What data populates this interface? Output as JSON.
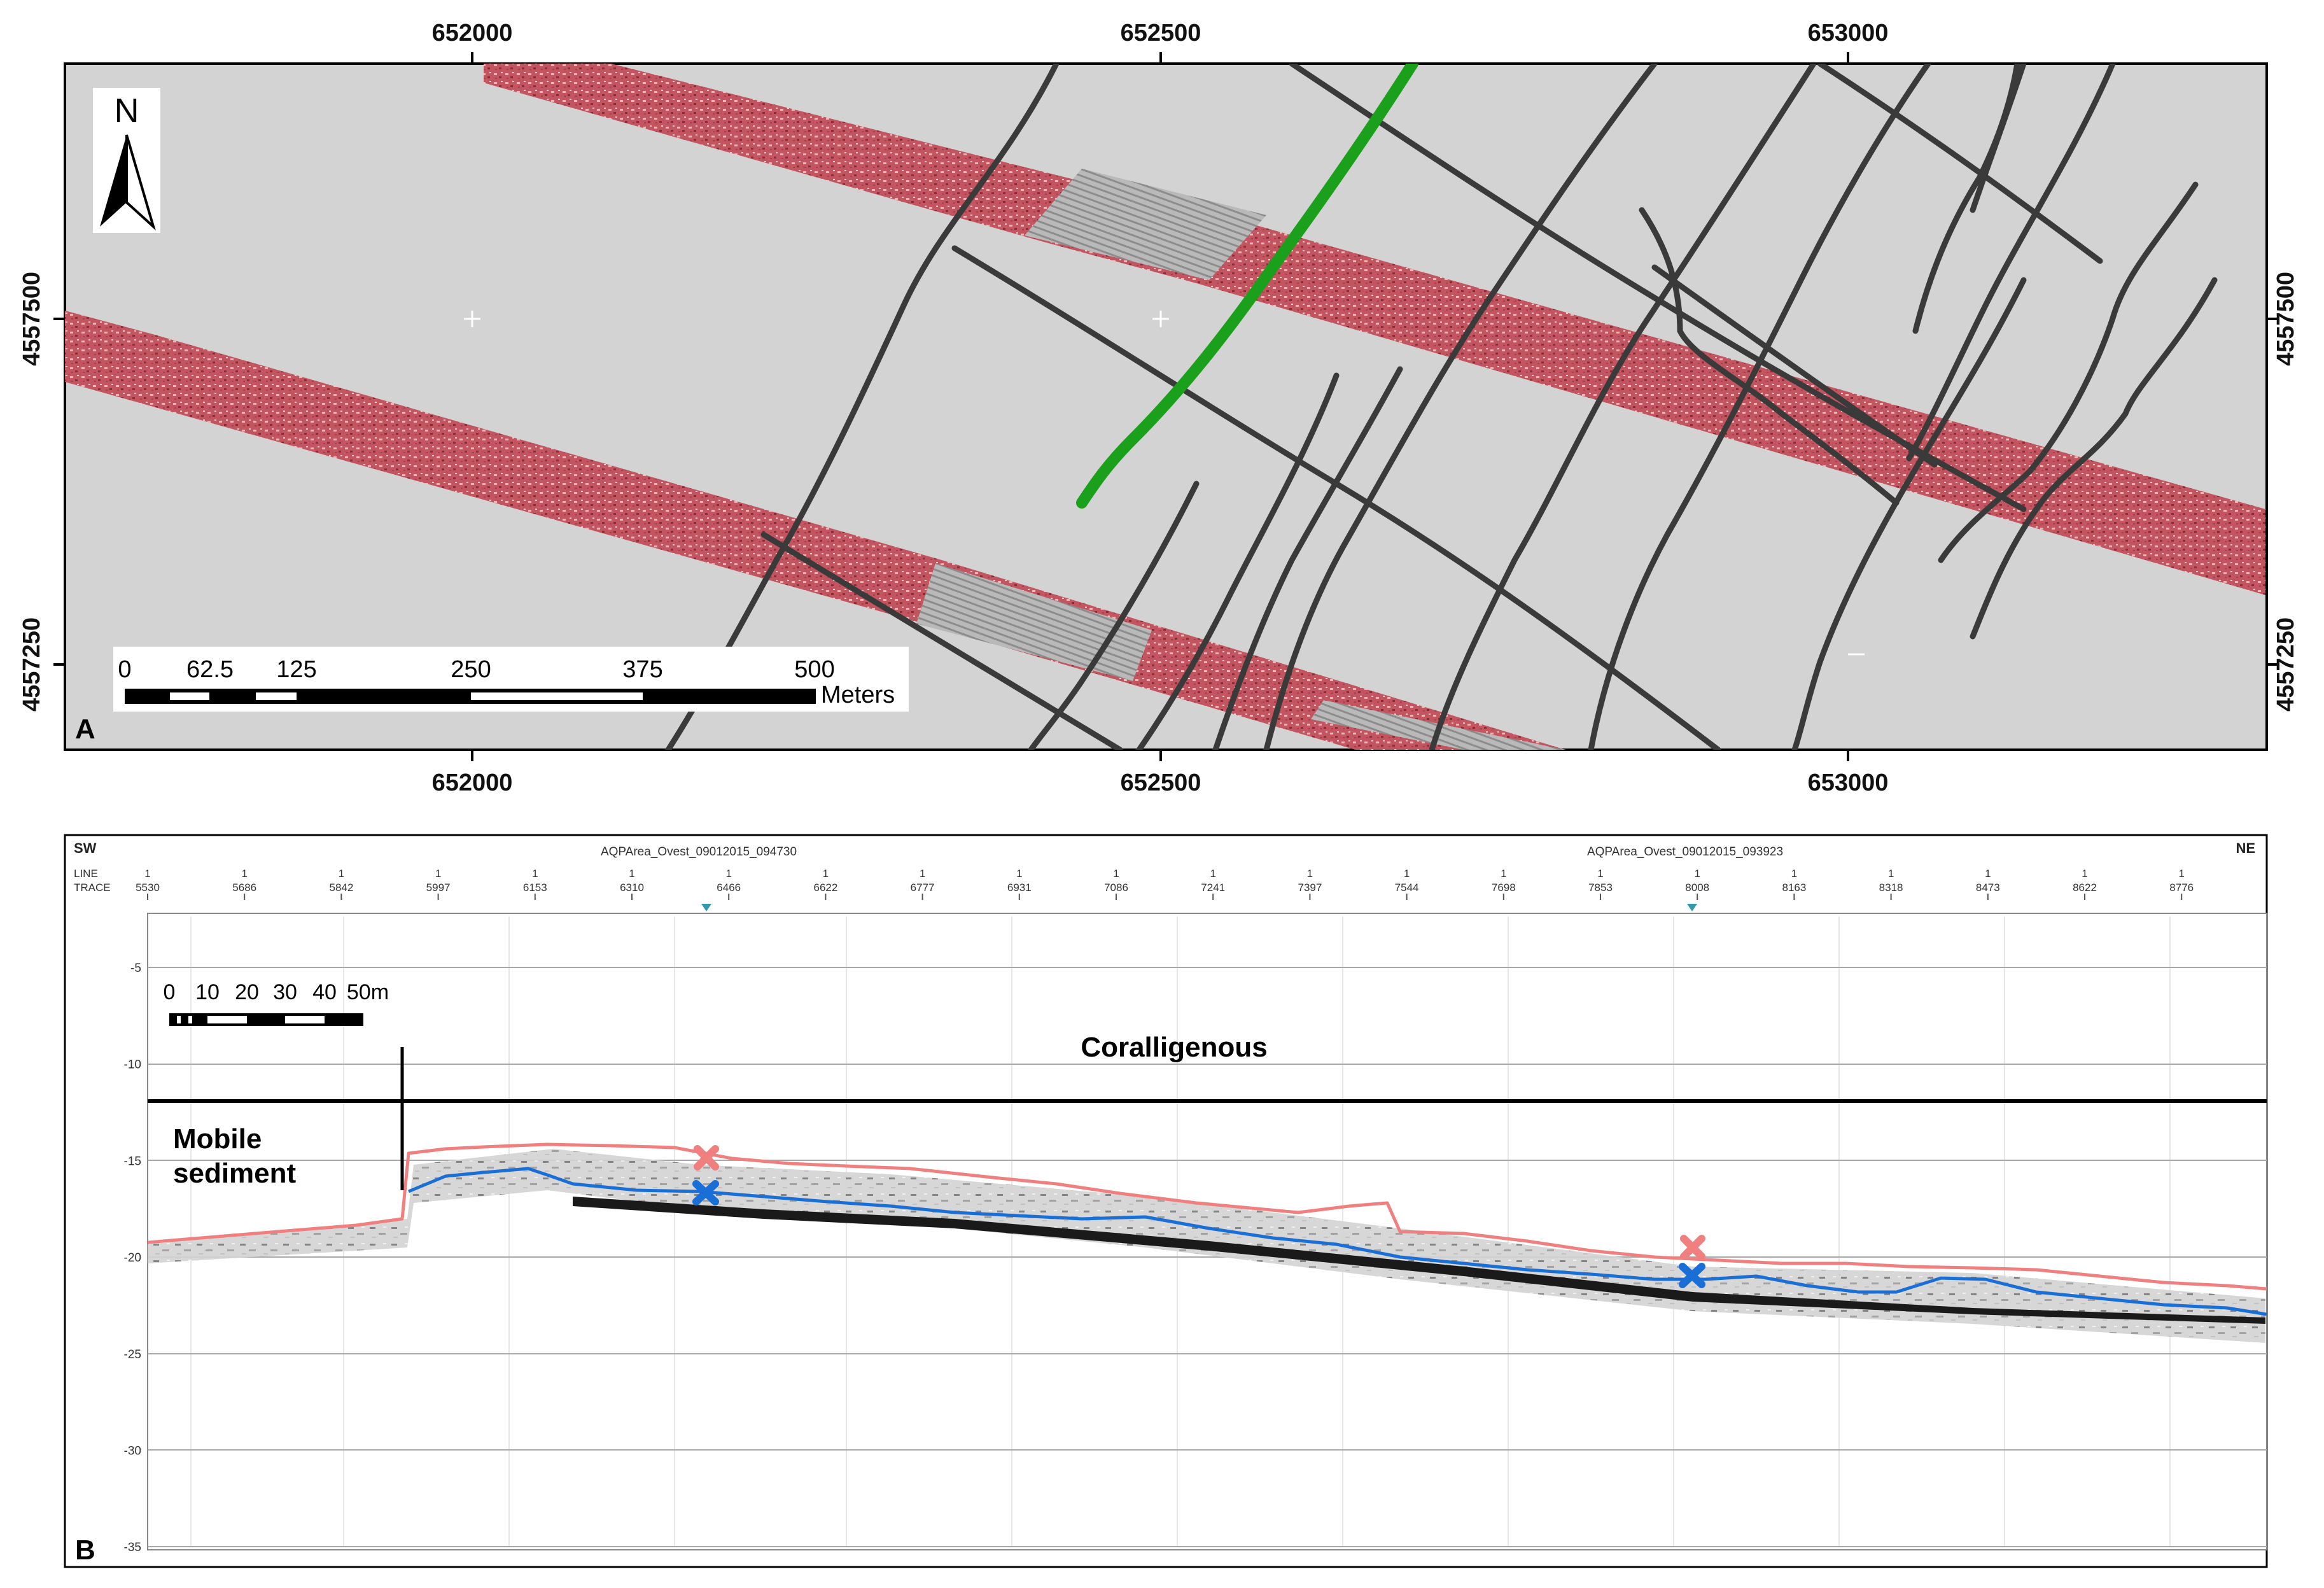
{
  "panel_a": {
    "letter": "A",
    "north_label": "N",
    "x_ticks": [
      "652000",
      "652500",
      "653000"
    ],
    "y_ticks": [
      "4557500",
      "4557250"
    ],
    "scale_bar": {
      "labels": [
        "0",
        "62.5",
        "125",
        "250",
        "375",
        "500"
      ],
      "unit": "Meters"
    },
    "colors": {
      "background": "#d3d3d3",
      "swath": "#c0505a",
      "lines": "#3a3a3a",
      "highlight_line": "#1aa01a"
    }
  },
  "panel_b": {
    "letter": "B",
    "left_dir": "SW",
    "right_dir": "NE",
    "file_labels": [
      "AQPArea_Ovest_09012015_094730",
      "AQPArea_Ovest_09012015_093923"
    ],
    "line_row_label": "LINE",
    "trace_row_label": "TRACE",
    "line_value": "1",
    "traces": [
      "5530",
      "5686",
      "5842",
      "5997",
      "6153",
      "6310",
      "6466",
      "6622",
      "6777",
      "6931",
      "7086",
      "7241",
      "7397",
      "7544",
      "7698",
      "7853",
      "8008",
      "8163",
      "8318",
      "8473",
      "8622",
      "8776"
    ],
    "depth_ticks": [
      "-5",
      "-10",
      "-15",
      "-20",
      "-25",
      "-30",
      "-35"
    ],
    "scale_bar": {
      "labels": [
        "0",
        "10",
        "20",
        "30",
        "40",
        "50m"
      ]
    },
    "zone_labels": {
      "upper": "Coralligenous",
      "lower_line1": "Mobile",
      "lower_line2": "sediment"
    },
    "colors": {
      "top_reflector": "#f08080",
      "base_reflector": "#1a6fd6",
      "marker_top": "#f08080",
      "marker_base": "#1a6fd6"
    }
  }
}
